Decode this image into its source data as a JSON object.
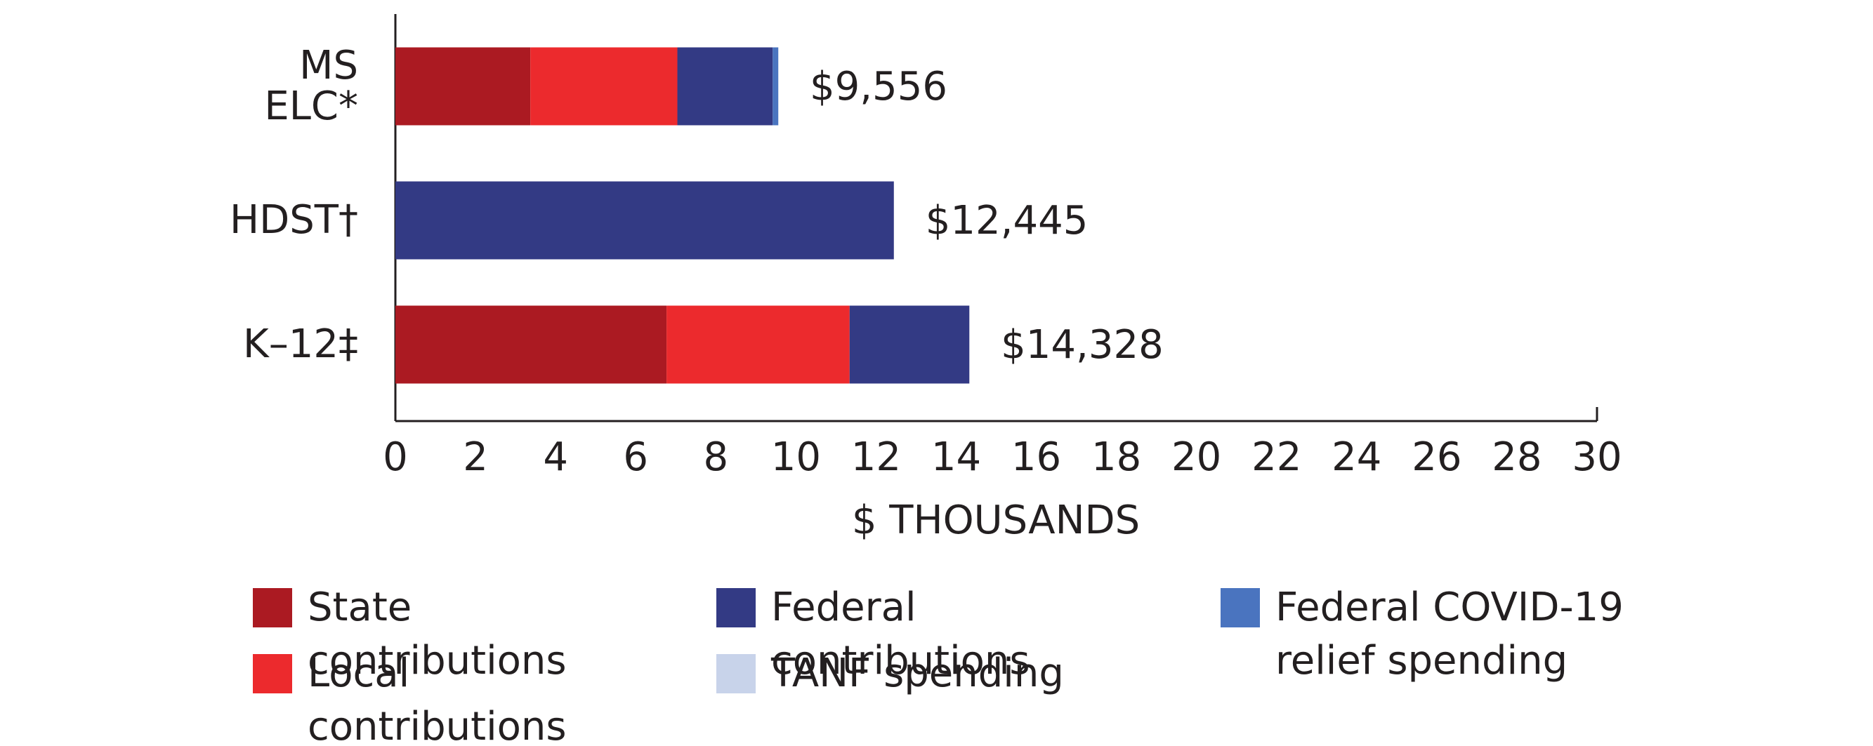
{
  "chart_data": {
    "type": "stacked-bar-horizontal",
    "categories": [
      "MS ELC*",
      "HDST†",
      "K–12‡"
    ],
    "series": [
      {
        "name": "State contributions",
        "color": "#ab1a22",
        "values": [
          3.37,
          0,
          6.77
        ]
      },
      {
        "name": "Local contributions",
        "color": "#ec2a2d",
        "values": [
          3.67,
          0,
          4.57
        ]
      },
      {
        "name": "Federal contributions",
        "color": "#333a84",
        "values": [
          2.38,
          12.445,
          2.99
        ]
      },
      {
        "name": "TANF spending",
        "color": "#c8d3ea",
        "values": [
          0,
          0,
          0
        ]
      },
      {
        "name": "Federal COVID-19 relief spending",
        "color": "#4a74bf",
        "values": [
          0.14,
          0,
          0
        ]
      }
    ],
    "totals": {
      "values": [
        9.556,
        12.445,
        14.328
      ],
      "value_labels": [
        "$9,556",
        "$12,445",
        "$14,328"
      ]
    },
    "xlabel": "$ THOUSANDS",
    "xlim": [
      0,
      30
    ],
    "xticks": [
      0,
      2,
      4,
      6,
      8,
      10,
      12,
      14,
      16,
      18,
      20,
      22,
      24,
      26,
      28,
      30
    ],
    "grid": false
  }
}
